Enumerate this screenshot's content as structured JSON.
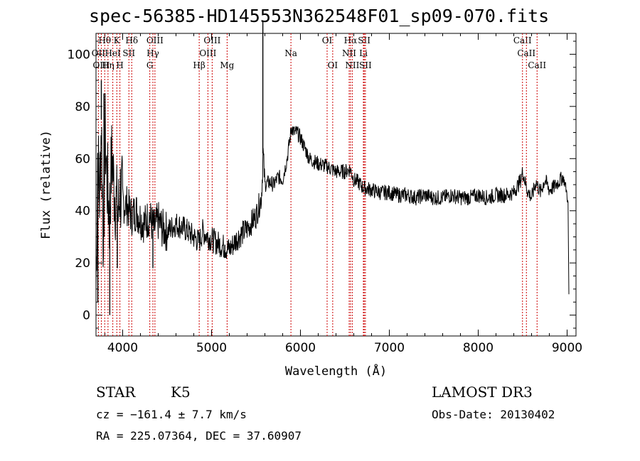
{
  "header": {
    "title": "spec-56385-HD145553N362548F01_sp09-070.fits"
  },
  "footer": {
    "object_class": "STAR",
    "subclass": "K5",
    "survey": "LAMOST DR3",
    "cz": "cz = −161.4 ± 7.7 km/s",
    "obs_date": "Obs-Date: 20130402",
    "radec": "RA = 225.07364, DEC =  37.60907"
  },
  "chart_data": {
    "type": "line",
    "title": "spec-56385-HD145553N362548F01_sp09-070.fits",
    "xlabel": "Wavelength (Å)",
    "ylabel": "Flux (relative)",
    "xlim": [
      3700,
      9100
    ],
    "ylim": [
      -8,
      108
    ],
    "x_ticks": [
      4000,
      5000,
      6000,
      7000,
      8000,
      9000
    ],
    "y_ticks": [
      0,
      20,
      40,
      60,
      80,
      100
    ],
    "grid": false,
    "line_color": "#000000",
    "marker_color": "#cc0000",
    "series": [
      {
        "x": [
          3700,
          3720,
          3740,
          3760,
          3780,
          3800,
          3820,
          3850,
          3880,
          3900,
          3930,
          3950,
          3970,
          4000,
          4050,
          4100,
          4150,
          4200,
          4250,
          4300,
          4350,
          4400,
          4450,
          4500,
          4600,
          4700,
          4800,
          4860,
          4900,
          5000,
          5100,
          5200,
          5300,
          5400,
          5500,
          5560,
          5570,
          5580,
          5600,
          5650,
          5700,
          5750,
          5800,
          5850,
          5900,
          5930,
          5960,
          6000,
          6050,
          6100,
          6200,
          6300,
          6400,
          6500,
          6560,
          6600,
          6650,
          6700,
          6800,
          6900,
          7000,
          7100,
          7200,
          7300,
          7400,
          7500,
          7600,
          7700,
          7800,
          7900,
          8000,
          8100,
          8200,
          8300,
          8400,
          8450,
          8480,
          8500,
          8550,
          8600,
          8650,
          8700,
          8750,
          8800,
          8850,
          8900,
          8930,
          8950,
          8980,
          9000,
          9010,
          9020
        ],
        "y": [
          10,
          62,
          45,
          75,
          30,
          72,
          55,
          38,
          62,
          50,
          42,
          38,
          48,
          43,
          42,
          38,
          40,
          37,
          35,
          38,
          33,
          36,
          33,
          32,
          35,
          33,
          30,
          28,
          32,
          29,
          27,
          25,
          30,
          33,
          38,
          45,
          52,
          62,
          50,
          51,
          50,
          53,
          52,
          60,
          72,
          70,
          70,
          68,
          64,
          60,
          58,
          57,
          55,
          55,
          56,
          52,
          51,
          49,
          48,
          47,
          47,
          46,
          46,
          45,
          46,
          45,
          45,
          46,
          45,
          45,
          46,
          45,
          46,
          46,
          47,
          50,
          52,
          55,
          48,
          45,
          51,
          47,
          52,
          48,
          49,
          51,
          52,
          53,
          50,
          46,
          42,
          8
        ],
        "spikes": [
          [
            3760,
            90
          ],
          [
            3790,
            85
          ],
          [
            3720,
            5
          ],
          [
            3855,
            0
          ],
          [
            5577,
            113
          ],
          [
            3940,
            18
          ],
          [
            4340,
            18
          ],
          [
            5150,
            22
          ]
        ]
      }
    ],
    "lines": [
      {
        "label": "Hθ",
        "x": 3798,
        "row": 0
      },
      {
        "label": "K",
        "x": 3934,
        "row": 0
      },
      {
        "label": "Hδ",
        "x": 4102,
        "row": 0
      },
      {
        "label": "OIII",
        "x": 4363,
        "row": 0
      },
      {
        "label": "OIII",
        "x": 5007,
        "row": 0
      },
      {
        "label": "OI",
        "x": 6300,
        "row": 0
      },
      {
        "label": "Hα",
        "x": 6563,
        "row": 0
      },
      {
        "label": "SII",
        "x": 6717,
        "row": 0
      },
      {
        "label": "CaII",
        "x": 8498,
        "row": 0
      },
      {
        "label": "OII",
        "x": 3727,
        "row": 1
      },
      {
        "label": "HeI",
        "x": 3889,
        "row": 1
      },
      {
        "label": "SII",
        "x": 4070,
        "row": 1
      },
      {
        "label": "Hγ",
        "x": 4340,
        "row": 1
      },
      {
        "label": "OIII",
        "x": 4959,
        "row": 1
      },
      {
        "label": "Na",
        "x": 5893,
        "row": 1
      },
      {
        "label": "NII",
        "x": 6548,
        "row": 1
      },
      {
        "label": "Li",
        "x": 6708,
        "row": 1
      },
      {
        "label": "CaII",
        "x": 8542,
        "row": 1
      },
      {
        "label": "OIII",
        "x": 3760,
        "row": 2
      },
      {
        "label": "Hη",
        "x": 3835,
        "row": 2
      },
      {
        "label": "H",
        "x": 3969,
        "row": 2
      },
      {
        "label": "G",
        "x": 4305,
        "row": 2
      },
      {
        "label": "Hβ",
        "x": 4861,
        "row": 2
      },
      {
        "label": "Mg",
        "x": 5175,
        "row": 2
      },
      {
        "label": "OI",
        "x": 6363,
        "row": 2
      },
      {
        "label": "NII",
        "x": 6583,
        "row": 2
      },
      {
        "label": "SII",
        "x": 6731,
        "row": 2
      },
      {
        "label": "CaII",
        "x": 8662,
        "row": 2
      }
    ]
  }
}
